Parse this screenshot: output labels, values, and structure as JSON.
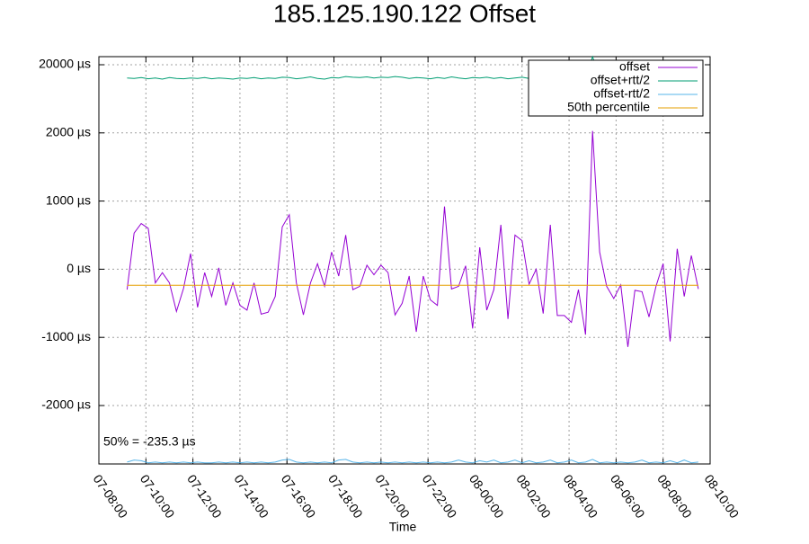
{
  "chart_data": {
    "type": "line",
    "title": "185.125.190.122 Offset",
    "x_label": "Time",
    "x": [
      "07-09:12",
      "07-09:30",
      "07-09:48",
      "07-10:06",
      "07-10:24",
      "07-10:42",
      "07-11:00",
      "07-11:18",
      "07-11:36",
      "07-11:54",
      "07-12:12",
      "07-12:30",
      "07-12:48",
      "07-13:06",
      "07-13:24",
      "07-13:42",
      "07-14:00",
      "07-14:18",
      "07-14:36",
      "07-14:54",
      "07-15:12",
      "07-15:30",
      "07-15:48",
      "07-16:06",
      "07-16:24",
      "07-16:42",
      "07-17:00",
      "07-17:18",
      "07-17:36",
      "07-17:54",
      "07-18:12",
      "07-18:30",
      "07-18:48",
      "07-19:06",
      "07-19:24",
      "07-19:42",
      "07-20:00",
      "07-20:18",
      "07-20:36",
      "07-20:54",
      "07-21:12",
      "07-21:30",
      "07-21:48",
      "07-22:06",
      "07-22:24",
      "07-22:42",
      "07-23:00",
      "07-23:18",
      "07-23:36",
      "07-23:54",
      "08-00:12",
      "08-00:30",
      "08-00:48",
      "08-01:06",
      "08-01:24",
      "08-01:42",
      "08-02:00",
      "08-02:18",
      "08-02:36",
      "08-02:54",
      "08-03:12",
      "08-03:30",
      "08-03:48",
      "08-04:06",
      "08-04:24",
      "08-04:42",
      "08-05:00",
      "08-05:18",
      "08-05:36",
      "08-05:54",
      "08-06:12",
      "08-06:30",
      "08-06:48",
      "08-07:06",
      "08-07:24",
      "08-07:42",
      "08-08:00",
      "08-08:18",
      "08-08:36",
      "08-08:54",
      "08-09:12",
      "08-09:30"
    ],
    "series": [
      {
        "name": "offset",
        "color": "#9400d3",
        "values": [
          -300,
          530,
          670,
          600,
          -200,
          -50,
          -200,
          -620,
          -280,
          230,
          -560,
          -50,
          -400,
          20,
          -530,
          -200,
          -530,
          -600,
          -200,
          -660,
          -630,
          -400,
          620,
          800,
          -200,
          -670,
          -200,
          80,
          -250,
          250,
          -100,
          500,
          -300,
          -250,
          60,
          -80,
          60,
          -50,
          -670,
          -500,
          -100,
          -920,
          -100,
          -450,
          -530,
          920,
          -290,
          -250,
          50,
          -870,
          320,
          -600,
          -300,
          650,
          -730,
          500,
          420,
          -220,
          0,
          -650,
          650,
          -680,
          -680,
          -780,
          -300,
          -960,
          2500,
          250,
          -250,
          -430,
          -230,
          -1140,
          -310,
          -330,
          -700,
          -250,
          80,
          -1060,
          300,
          -400,
          200,
          -290
        ]
      },
      {
        "name": "offset+rtt/2",
        "color": "#009e73",
        "values": [
          16500,
          16400,
          16600,
          16300,
          16500,
          16200,
          16600,
          16400,
          16300,
          16500,
          16400,
          16600,
          16300,
          16500,
          16400,
          16200,
          16500,
          16400,
          16600,
          16300,
          16500,
          16400,
          16700,
          16600,
          16300,
          16500,
          16800,
          16400,
          16200,
          16600,
          16500,
          16900,
          16700,
          16600,
          16800,
          16500,
          16700,
          16600,
          16900,
          16700,
          16400,
          16600,
          16500,
          16300,
          16600,
          16400,
          16800,
          16500,
          16300,
          16600,
          16500,
          16700,
          16400,
          16600,
          16300,
          16500,
          16700,
          16400,
          16600,
          16300,
          16500,
          16400,
          16600,
          16300,
          16500,
          16400,
          22100,
          16800,
          16300,
          16200,
          16500,
          16300,
          16100,
          16400,
          16200,
          16300,
          16500,
          16200,
          16400,
          16100,
          16300,
          16200
        ]
      },
      {
        "name": "offset-rtt/2",
        "color": "#56b4e9",
        "values": [
          -2830,
          -2800,
          -2810,
          -2840,
          -2830,
          -2840,
          -2830,
          -2840,
          -2830,
          -2840,
          -2830,
          -2840,
          -2840,
          -2830,
          -2840,
          -2830,
          -2840,
          -2830,
          -2840,
          -2830,
          -2840,
          -2830,
          -2800,
          -2790,
          -2830,
          -2840,
          -2830,
          -2840,
          -2830,
          -2840,
          -2800,
          -2790,
          -2830,
          -2840,
          -2830,
          -2840,
          -2830,
          -2840,
          -2830,
          -2840,
          -2830,
          -2840,
          -2830,
          -2840,
          -2830,
          -2840,
          -2830,
          -2800,
          -2830,
          -2840,
          -2810,
          -2830,
          -2800,
          -2840,
          -2830,
          -2800,
          -2840,
          -2810,
          -2840,
          -2830,
          -2800,
          -2840,
          -2830,
          -2800,
          -2840,
          -2830,
          -2790,
          -2840,
          -2830,
          -2840,
          -2830,
          -2840,
          -2830,
          -2800,
          -2840,
          -2830,
          -2840,
          -2810,
          -2840,
          -2800,
          -2840,
          -2830
        ]
      }
    ],
    "percentile": {
      "name": "50th percentile",
      "color": "#e69f00",
      "value": -235.3,
      "label": "50% = -235.3 µs"
    },
    "xlim": [
      "07-08:00",
      "08-10:00"
    ],
    "xticks": [
      "07-08:00",
      "07-10:00",
      "07-12:00",
      "07-14:00",
      "07-16:00",
      "07-18:00",
      "07-20:00",
      "07-22:00",
      "08-00:00",
      "08-02:00",
      "08-04:00",
      "08-06:00",
      "08-08:00",
      "08-10:00"
    ],
    "ylim": [
      -2858,
      22140
    ],
    "yticks": [
      {
        "value": -2000,
        "label": "-2000 µs"
      },
      {
        "value": -1000,
        "label": "-1000 µs"
      },
      {
        "value": 0,
        "label": "0 µs"
      },
      {
        "value": 1000,
        "label": "1000 µs"
      },
      {
        "value": 2000,
        "label": "2000 µs"
      },
      {
        "value": 20000,
        "label": "20000 µs"
      }
    ],
    "grid": true,
    "legend": "top-right"
  }
}
